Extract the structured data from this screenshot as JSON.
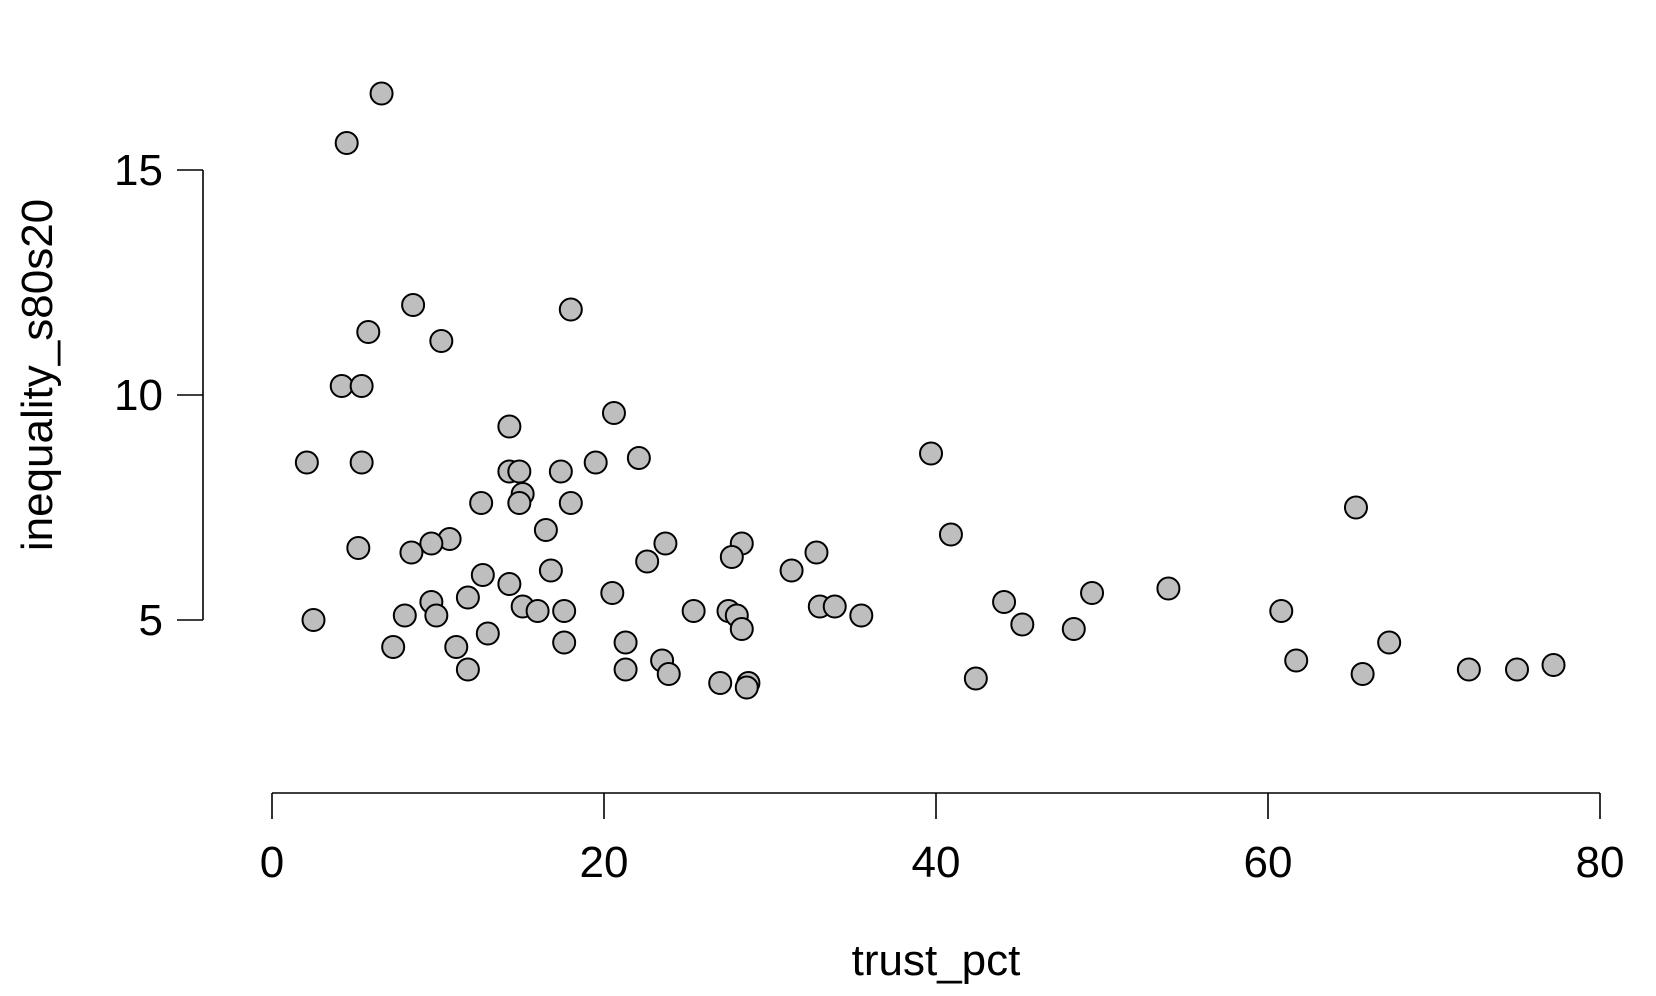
{
  "chart_data": {
    "type": "scatter",
    "title": "",
    "xlabel": "trust_pct",
    "ylabel": "inequality_s80s20",
    "xlim": [
      0,
      80
    ],
    "ylim": [
      5,
      15
    ],
    "xticks": [
      0,
      20,
      40,
      60,
      80
    ],
    "yticks": [
      5,
      10,
      15
    ],
    "grid": false,
    "legend": "none",
    "point_fill": "#bebebe",
    "point_stroke": "#000000",
    "points": [
      {
        "x": 6.6,
        "y": 16.7
      },
      {
        "x": 4.5,
        "y": 15.6
      },
      {
        "x": 8.5,
        "y": 12.0
      },
      {
        "x": 18.0,
        "y": 11.9
      },
      {
        "x": 5.8,
        "y": 11.4
      },
      {
        "x": 10.2,
        "y": 11.2
      },
      {
        "x": 4.2,
        "y": 10.2
      },
      {
        "x": 5.4,
        "y": 10.2
      },
      {
        "x": 20.6,
        "y": 9.6
      },
      {
        "x": 14.3,
        "y": 9.3
      },
      {
        "x": 39.7,
        "y": 8.7
      },
      {
        "x": 2.1,
        "y": 8.5
      },
      {
        "x": 5.4,
        "y": 8.5
      },
      {
        "x": 22.1,
        "y": 8.6
      },
      {
        "x": 19.5,
        "y": 8.5
      },
      {
        "x": 14.3,
        "y": 8.3
      },
      {
        "x": 14.9,
        "y": 8.3
      },
      {
        "x": 17.4,
        "y": 8.3
      },
      {
        "x": 15.1,
        "y": 7.8
      },
      {
        "x": 12.6,
        "y": 7.6
      },
      {
        "x": 14.9,
        "y": 7.6
      },
      {
        "x": 18.0,
        "y": 7.6
      },
      {
        "x": 65.3,
        "y": 7.5
      },
      {
        "x": 16.5,
        "y": 7.0
      },
      {
        "x": 40.9,
        "y": 6.9
      },
      {
        "x": 10.7,
        "y": 6.8
      },
      {
        "x": 5.2,
        "y": 6.6
      },
      {
        "x": 9.6,
        "y": 6.7
      },
      {
        "x": 23.7,
        "y": 6.7
      },
      {
        "x": 28.3,
        "y": 6.7
      },
      {
        "x": 32.8,
        "y": 6.5
      },
      {
        "x": 8.4,
        "y": 6.5
      },
      {
        "x": 27.7,
        "y": 6.4
      },
      {
        "x": 22.6,
        "y": 6.3
      },
      {
        "x": 16.8,
        "y": 6.1
      },
      {
        "x": 31.3,
        "y": 6.1
      },
      {
        "x": 12.7,
        "y": 6.0
      },
      {
        "x": 14.3,
        "y": 5.8
      },
      {
        "x": 20.5,
        "y": 5.6
      },
      {
        "x": 49.4,
        "y": 5.6
      },
      {
        "x": 54.0,
        "y": 5.7
      },
      {
        "x": 11.8,
        "y": 5.5
      },
      {
        "x": 9.6,
        "y": 5.4
      },
      {
        "x": 44.1,
        "y": 5.4
      },
      {
        "x": 15.1,
        "y": 5.3
      },
      {
        "x": 16.0,
        "y": 5.2
      },
      {
        "x": 17.6,
        "y": 5.2
      },
      {
        "x": 33.0,
        "y": 5.3
      },
      {
        "x": 33.9,
        "y": 5.3
      },
      {
        "x": 25.4,
        "y": 5.2
      },
      {
        "x": 27.5,
        "y": 5.2
      },
      {
        "x": 60.8,
        "y": 5.2
      },
      {
        "x": 35.5,
        "y": 5.1
      },
      {
        "x": 28.0,
        "y": 5.1
      },
      {
        "x": 8.0,
        "y": 5.1
      },
      {
        "x": 9.9,
        "y": 5.1
      },
      {
        "x": 2.5,
        "y": 5.0
      },
      {
        "x": 45.2,
        "y": 4.9
      },
      {
        "x": 48.3,
        "y": 4.8
      },
      {
        "x": 28.3,
        "y": 4.8
      },
      {
        "x": 13.0,
        "y": 4.7
      },
      {
        "x": 17.6,
        "y": 4.5
      },
      {
        "x": 21.3,
        "y": 4.5
      },
      {
        "x": 67.3,
        "y": 4.5
      },
      {
        "x": 7.3,
        "y": 4.4
      },
      {
        "x": 11.1,
        "y": 4.4
      },
      {
        "x": 61.7,
        "y": 4.1
      },
      {
        "x": 23.5,
        "y": 4.1
      },
      {
        "x": 77.2,
        "y": 4.0
      },
      {
        "x": 11.8,
        "y": 3.9
      },
      {
        "x": 21.3,
        "y": 3.9
      },
      {
        "x": 72.1,
        "y": 3.9
      },
      {
        "x": 75.0,
        "y": 3.9
      },
      {
        "x": 23.9,
        "y": 3.8
      },
      {
        "x": 65.7,
        "y": 3.8
      },
      {
        "x": 42.4,
        "y": 3.7
      },
      {
        "x": 28.7,
        "y": 3.6
      },
      {
        "x": 27.0,
        "y": 3.6
      },
      {
        "x": 28.6,
        "y": 3.5
      }
    ]
  }
}
